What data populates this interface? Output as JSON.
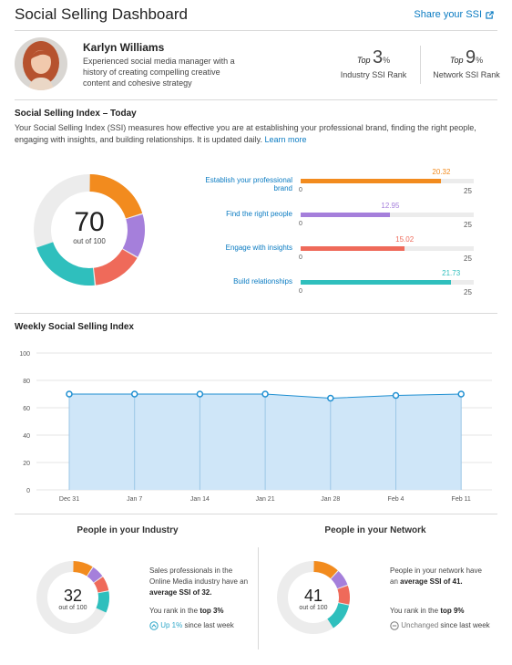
{
  "header": {
    "title": "Social Selling Dashboard",
    "share_label": "Share your SSI"
  },
  "profile": {
    "name": "Karlyn Williams",
    "bio": "Experienced social media manager with a history of creating compelling creative content and cohesive strategy"
  },
  "ranks": {
    "industry": {
      "prefix": "Top",
      "value": "3",
      "unit": "%",
      "label": "Industry SSI Rank"
    },
    "network": {
      "prefix": "Top",
      "value": "9",
      "unit": "%",
      "label": "Network SSI Rank"
    }
  },
  "ssi": {
    "title": "Social Selling Index – Today",
    "description": "Your Social Selling Index (SSI) measures how effective you are at establishing your professional brand, finding the right people, engaging with insights, and building relationships. It is updated daily.",
    "learn_more": "Learn more",
    "score": "70",
    "score_label": "out of 100",
    "components": [
      {
        "label": "Establish your professional brand",
        "value": 20.32,
        "value_text": "20.32",
        "min": "0",
        "max": "25",
        "color": "#f28b1e"
      },
      {
        "label": "Find the right people",
        "value": 12.95,
        "value_text": "12.95",
        "min": "0",
        "max": "25",
        "color": "#a57fdb"
      },
      {
        "label": "Engage with insights",
        "value": 15.02,
        "value_text": "15.02",
        "min": "0",
        "max": "25",
        "color": "#ef6a5a"
      },
      {
        "label": "Build relationships",
        "value": 21.73,
        "value_text": "21.73",
        "min": "0",
        "max": "25",
        "color": "#2fbfbd"
      }
    ]
  },
  "weekly": {
    "title": "Weekly Social Selling Index",
    "chart_data": {
      "type": "area",
      "categories": [
        "Dec 31",
        "Jan 7",
        "Jan 14",
        "Jan 21",
        "Jan 28",
        "Feb 4",
        "Feb 11"
      ],
      "values": [
        70,
        70,
        70,
        70,
        67,
        69,
        70
      ],
      "ylim": [
        0,
        100
      ],
      "yticks": [
        "0",
        "20",
        "40",
        "60",
        "80",
        "100"
      ],
      "grid": true,
      "colors": {
        "fill": "#cfe6f8",
        "line": "#1f8fd1"
      }
    }
  },
  "industry": {
    "title": "People in your Industry",
    "score": "32",
    "score_label": "out of 100",
    "text1": "Sales professionals in the Online Media industry have an",
    "text1_bold": "average SSI of 32.",
    "text2": "You rank in the",
    "text2_bold": "top 3%",
    "trend_value": "Up 1%",
    "trend_rest": "since last week"
  },
  "network": {
    "title": "People in your Network",
    "score": "41",
    "score_label": "out of 100",
    "text1": "People in your network have an",
    "text1_bold": "average SSI of 41.",
    "text2": "You rank in the",
    "text2_bold": "top 9%",
    "trend_value": "Unchanged",
    "trend_rest": "since last week"
  }
}
